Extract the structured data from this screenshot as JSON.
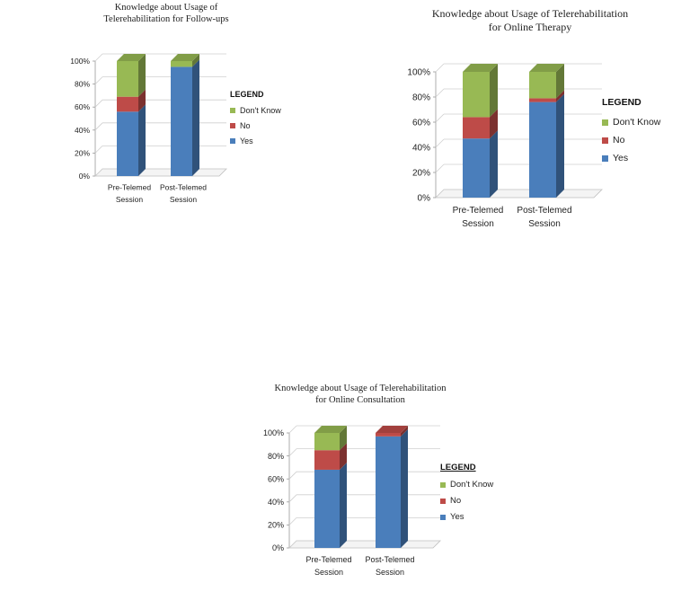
{
  "chart_data": [
    {
      "type": "bar",
      "stacked": true,
      "three_d": true,
      "title": [
        "Knowledge about Usage of",
        "Telerehabilitation for Follow-ups"
      ],
      "categories": [
        [
          "Pre-Telemed",
          "Session"
        ],
        [
          "Post-Telemed",
          "Session"
        ]
      ],
      "series": [
        {
          "name": "Yes",
          "color": "#4a7ebb",
          "values": [
            56,
            95
          ]
        },
        {
          "name": "No",
          "color": "#be4b48",
          "values": [
            13,
            0
          ]
        },
        {
          "name": "Don't Know",
          "color": "#98b954",
          "values": [
            31,
            5
          ]
        }
      ],
      "ylim": [
        0,
        100
      ],
      "yticks": [
        "0%",
        "20%",
        "40%",
        "60%",
        "80%",
        "100%"
      ],
      "legend_title": "LEGEND",
      "legend_position": "right"
    },
    {
      "type": "bar",
      "stacked": true,
      "three_d": true,
      "title": [
        "Knowledge about Usage of Telerehabilitation",
        "for Online Therapy"
      ],
      "categories": [
        [
          "Pre-Telemed",
          "Session"
        ],
        [
          "Post-Telemed",
          "Session"
        ]
      ],
      "series": [
        {
          "name": "Yes",
          "color": "#4a7ebb",
          "values": [
            47,
            76
          ]
        },
        {
          "name": "No",
          "color": "#be4b48",
          "values": [
            17,
            3
          ]
        },
        {
          "name": "Don't Know",
          "color": "#98b954",
          "values": [
            36,
            21
          ]
        }
      ],
      "ylim": [
        0,
        100
      ],
      "yticks": [
        "0%",
        "20%",
        "40%",
        "60%",
        "80%",
        "100%"
      ],
      "legend_title": "LEGEND",
      "legend_position": "right"
    },
    {
      "type": "bar",
      "stacked": true,
      "three_d": true,
      "title": [
        "Knowledge about Usage of Telerehabilitation",
        "for Online Consultation"
      ],
      "categories": [
        [
          "Pre-Telemed",
          "Session"
        ],
        [
          "Post-Telemed",
          "Session"
        ]
      ],
      "series": [
        {
          "name": "Yes",
          "color": "#4a7ebb",
          "values": [
            68,
            97
          ]
        },
        {
          "name": "No",
          "color": "#be4b48",
          "values": [
            17,
            3
          ]
        },
        {
          "name": "Don't Know",
          "color": "#98b954",
          "values": [
            15,
            0
          ]
        }
      ],
      "ylim": [
        0,
        100
      ],
      "yticks": [
        "0%",
        "20%",
        "40%",
        "60%",
        "80%",
        "100%"
      ],
      "legend_title": "LEGEND",
      "legend_position": "right"
    }
  ]
}
